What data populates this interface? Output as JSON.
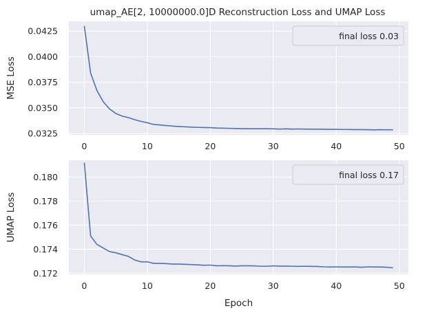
{
  "figure": {
    "title": "umap_AE[2, 10000000.0]D Reconstruction Loss and UMAP Loss",
    "background": "#ffffff",
    "axes_facecolor": "#eaeaf2",
    "grid_color": "#ffffff",
    "line_color": "#4c72b0",
    "text_color": "#262626"
  },
  "chart_data": [
    {
      "type": "line",
      "title": "umap_AE[2, 10000000.0]D Reconstruction Loss and UMAP Loss",
      "xlabel": "",
      "ylabel": "MSE Loss",
      "xlim": [
        -2.45,
        51.45
      ],
      "ylim": [
        0.03237,
        0.04345
      ],
      "xticks": [
        0,
        10,
        20,
        30,
        40,
        50
      ],
      "yticks": [
        0.0325,
        0.035,
        0.0375,
        0.04,
        0.0425
      ],
      "ytick_labels": [
        "0.0325",
        "0.0350",
        "0.0375",
        "0.0400",
        "0.0425"
      ],
      "grid": true,
      "legend": {
        "position": "top-right",
        "label": "final loss 0.03"
      },
      "x": [
        0,
        1,
        2,
        3,
        4,
        5,
        6,
        7,
        8,
        9,
        10,
        11,
        12,
        13,
        14,
        15,
        16,
        17,
        18,
        19,
        20,
        21,
        22,
        23,
        24,
        25,
        26,
        27,
        28,
        29,
        30,
        31,
        32,
        33,
        34,
        35,
        36,
        37,
        38,
        39,
        40,
        41,
        42,
        43,
        44,
        45,
        46,
        47,
        48,
        49
      ],
      "y": [
        0.043,
        0.0384,
        0.0367,
        0.0356,
        0.0349,
        0.03445,
        0.0342,
        0.03405,
        0.03385,
        0.03368,
        0.03355,
        0.03338,
        0.03333,
        0.03327,
        0.03322,
        0.03318,
        0.03315,
        0.03312,
        0.0331,
        0.03308,
        0.03307,
        0.03303,
        0.03302,
        0.033,
        0.03299,
        0.03297,
        0.03296,
        0.03296,
        0.03296,
        0.03296,
        0.03295,
        0.03293,
        0.03295,
        0.03293,
        0.03294,
        0.03293,
        0.03292,
        0.03292,
        0.03291,
        0.0329,
        0.0329,
        0.03289,
        0.03289,
        0.03288,
        0.03288,
        0.03287,
        0.03285,
        0.03287,
        0.03286,
        0.03286
      ]
    },
    {
      "type": "line",
      "title": "",
      "xlabel": "Epoch",
      "ylabel": "UMAP Loss",
      "xlim": [
        -2.45,
        51.45
      ],
      "ylim": [
        0.1719,
        0.1814
      ],
      "xticks": [
        0,
        10,
        20,
        30,
        40,
        50
      ],
      "yticks": [
        0.172,
        0.174,
        0.176,
        0.178,
        0.18
      ],
      "ytick_labels": [
        "0.172",
        "0.174",
        "0.176",
        "0.178",
        "0.180"
      ],
      "grid": true,
      "legend": {
        "position": "top-right",
        "label": "final loss 0.17"
      },
      "x": [
        0,
        1,
        2,
        3,
        4,
        5,
        6,
        7,
        8,
        9,
        10,
        11,
        12,
        13,
        14,
        15,
        16,
        17,
        18,
        19,
        20,
        21,
        22,
        23,
        24,
        25,
        26,
        27,
        28,
        29,
        30,
        31,
        32,
        33,
        34,
        35,
        36,
        37,
        38,
        39,
        40,
        41,
        42,
        43,
        44,
        45,
        46,
        47,
        48,
        49
      ],
      "y": [
        0.1812,
        0.1751,
        0.1744,
        0.1741,
        0.1738,
        0.1737,
        0.17355,
        0.1734,
        0.1731,
        0.17295,
        0.17295,
        0.17282,
        0.17282,
        0.1728,
        0.17276,
        0.17276,
        0.17274,
        0.17272,
        0.1727,
        0.17266,
        0.17268,
        0.17262,
        0.17263,
        0.17262,
        0.1726,
        0.17262,
        0.17262,
        0.17261,
        0.17258,
        0.17258,
        0.17261,
        0.17259,
        0.17259,
        0.17258,
        0.17257,
        0.17258,
        0.17257,
        0.17256,
        0.17253,
        0.17252,
        0.17253,
        0.17252,
        0.17252,
        0.17252,
        0.1725,
        0.17253,
        0.17252,
        0.17252,
        0.1725,
        0.17245
      ]
    }
  ]
}
